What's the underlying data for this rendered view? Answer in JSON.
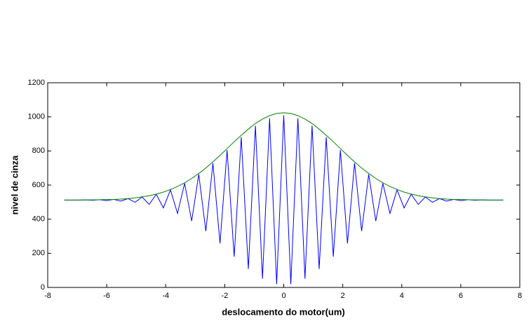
{
  "chart_data": {
    "type": "line",
    "xlabel": "deslocamento do motor(um)",
    "ylabel": "nivel de cinza",
    "x": [
      -7.44,
      -7.2,
      -6.96,
      -6.72,
      -6.48,
      -6.24,
      -6,
      -5.76,
      -5.52,
      -5.28,
      -5.04,
      -4.8,
      -4.56,
      -4.32,
      -4.08,
      -3.84,
      -3.6,
      -3.36,
      -3.12,
      -2.88,
      -2.64,
      -2.4,
      -2.16,
      -1.92,
      -1.68,
      -1.44,
      -1.2,
      -0.96,
      -0.72,
      -0.48,
      -0.24,
      0,
      0.24,
      0.48,
      0.72,
      0.96,
      1.2,
      1.44,
      1.68,
      1.92,
      2.16,
      2.4,
      2.64,
      2.88,
      3.12,
      3.36,
      3.6,
      3.84,
      4.08,
      4.32,
      4.56,
      4.8,
      5.04,
      5.28,
      5.52,
      5.76,
      6,
      6.24,
      6.48,
      6.72,
      6.96,
      7.2,
      7.44
    ],
    "series": [
      {
        "color": "#0000ff",
        "values": [
          512,
          512,
          512,
          513,
          511,
          514,
          509,
          516,
          506,
          521,
          499,
          530,
          487,
          546,
          466,
          572,
          434,
          610,
          389,
          663,
          330,
          729,
          258,
          805,
          180,
          881,
          108,
          948,
          51,
          992,
          19,
          1009,
          19,
          992,
          51,
          948,
          108,
          881,
          180,
          805,
          258,
          729,
          330,
          663,
          389,
          610,
          434,
          572,
          466,
          546,
          487,
          530,
          499,
          521,
          506,
          516,
          509,
          514,
          511,
          513,
          512,
          512,
          512
        ]
      },
      {
        "color": "#008000",
        "values": [
          512,
          512,
          512,
          513,
          513,
          514,
          515,
          516,
          518,
          521,
          525,
          531,
          538,
          547,
          559,
          574,
          592,
          613,
          639,
          668,
          700,
          736,
          774,
          814,
          854,
          892,
          928,
          961,
          987,
          1007,
          1020,
          1024,
          1020,
          1007,
          987,
          961,
          928,
          892,
          854,
          814,
          774,
          736,
          700,
          668,
          639,
          613,
          592,
          574,
          559,
          547,
          538,
          531,
          525,
          521,
          518,
          516,
          515,
          514,
          513,
          513,
          512,
          512,
          512
        ]
      }
    ],
    "xlim": [
      -8,
      8
    ],
    "xticks": [
      -8,
      -6,
      -4,
      -2,
      0,
      2,
      4,
      6,
      8
    ],
    "ylim": [
      0,
      1200
    ],
    "yticks": [
      0,
      200,
      400,
      600,
      800,
      1000,
      1200
    ]
  }
}
